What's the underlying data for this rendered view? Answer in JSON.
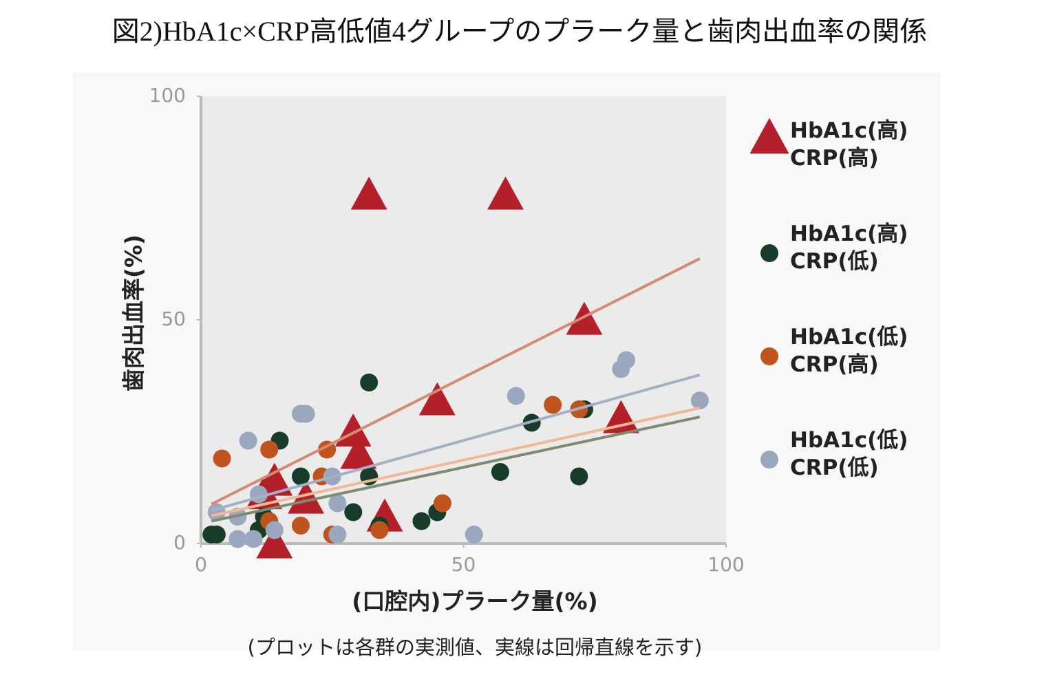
{
  "chart_data": {
    "type": "scatter",
    "title": "図2)HbA1c×CRP高低値4グループのプラーク量と歯肉出血率の関係",
    "x_label": "(口腔内)プラーク量(%)",
    "y_label": "歯肉出血率(%)",
    "caption": "(プロットは各群の実測値、実線は回帰直線を示す)",
    "xlim": [
      0,
      100
    ],
    "xticks": [
      0,
      50,
      100
    ],
    "ylim": [
      0,
      100
    ],
    "yticks": [
      0,
      50,
      100
    ],
    "series": [
      {
        "name": "HbA1c(高)\nCRP(高)",
        "color": "#b32029",
        "marker": "triangle",
        "line_color": "#d78a72",
        "x": [
          32,
          58,
          73,
          45,
          29,
          30,
          14,
          12,
          20,
          35,
          14,
          80
        ],
        "y": [
          78,
          78,
          50,
          32,
          25,
          20,
          14,
          11,
          10,
          6,
          0,
          28
        ],
        "fit": {
          "x": [
            2,
            95
          ],
          "y": [
            8.8,
            63.7
          ]
        }
      },
      {
        "name": "HbA1c(高)\nCRP(低)",
        "color": "#173d2a",
        "marker": "circle",
        "line_color": "#7f8b70",
        "x": [
          32,
          15,
          19,
          32,
          57,
          63,
          73,
          72,
          29,
          42,
          45,
          34,
          12,
          11,
          2,
          3
        ],
        "y": [
          36,
          23,
          15,
          15,
          16,
          27,
          30,
          15,
          7,
          5,
          7,
          4,
          6,
          3,
          2,
          2
        ],
        "fit": {
          "x": [
            2,
            95
          ],
          "y": [
            5,
            28.3
          ]
        }
      },
      {
        "name": "HbA1c(低)\nCRP(高)",
        "color": "#c0541f",
        "marker": "circle",
        "line_color": "#f0b995",
        "x": [
          4,
          13,
          24,
          23,
          19,
          25,
          34,
          46,
          67,
          72,
          13
        ],
        "y": [
          19,
          21,
          21,
          15,
          4,
          2,
          3,
          9,
          31,
          30,
          5
        ],
        "fit": {
          "x": [
            2,
            95
          ],
          "y": [
            6.2,
            30.3
          ]
        }
      },
      {
        "name": "HbA1c(低)\nCRP(低)",
        "color": "#9aa8bf",
        "marker": "circle",
        "line_color": "#a5b0c5",
        "x": [
          9,
          19,
          20,
          80,
          81,
          60,
          95,
          25,
          26,
          11,
          7,
          3,
          7,
          10,
          14,
          26,
          52
        ],
        "y": [
          23,
          29,
          29,
          39,
          41,
          33,
          32,
          15,
          9,
          11,
          6,
          7,
          1,
          1,
          3,
          2,
          2
        ],
        "fit": {
          "x": [
            2,
            95
          ],
          "y": [
            7.4,
            37.7
          ]
        }
      }
    ]
  }
}
